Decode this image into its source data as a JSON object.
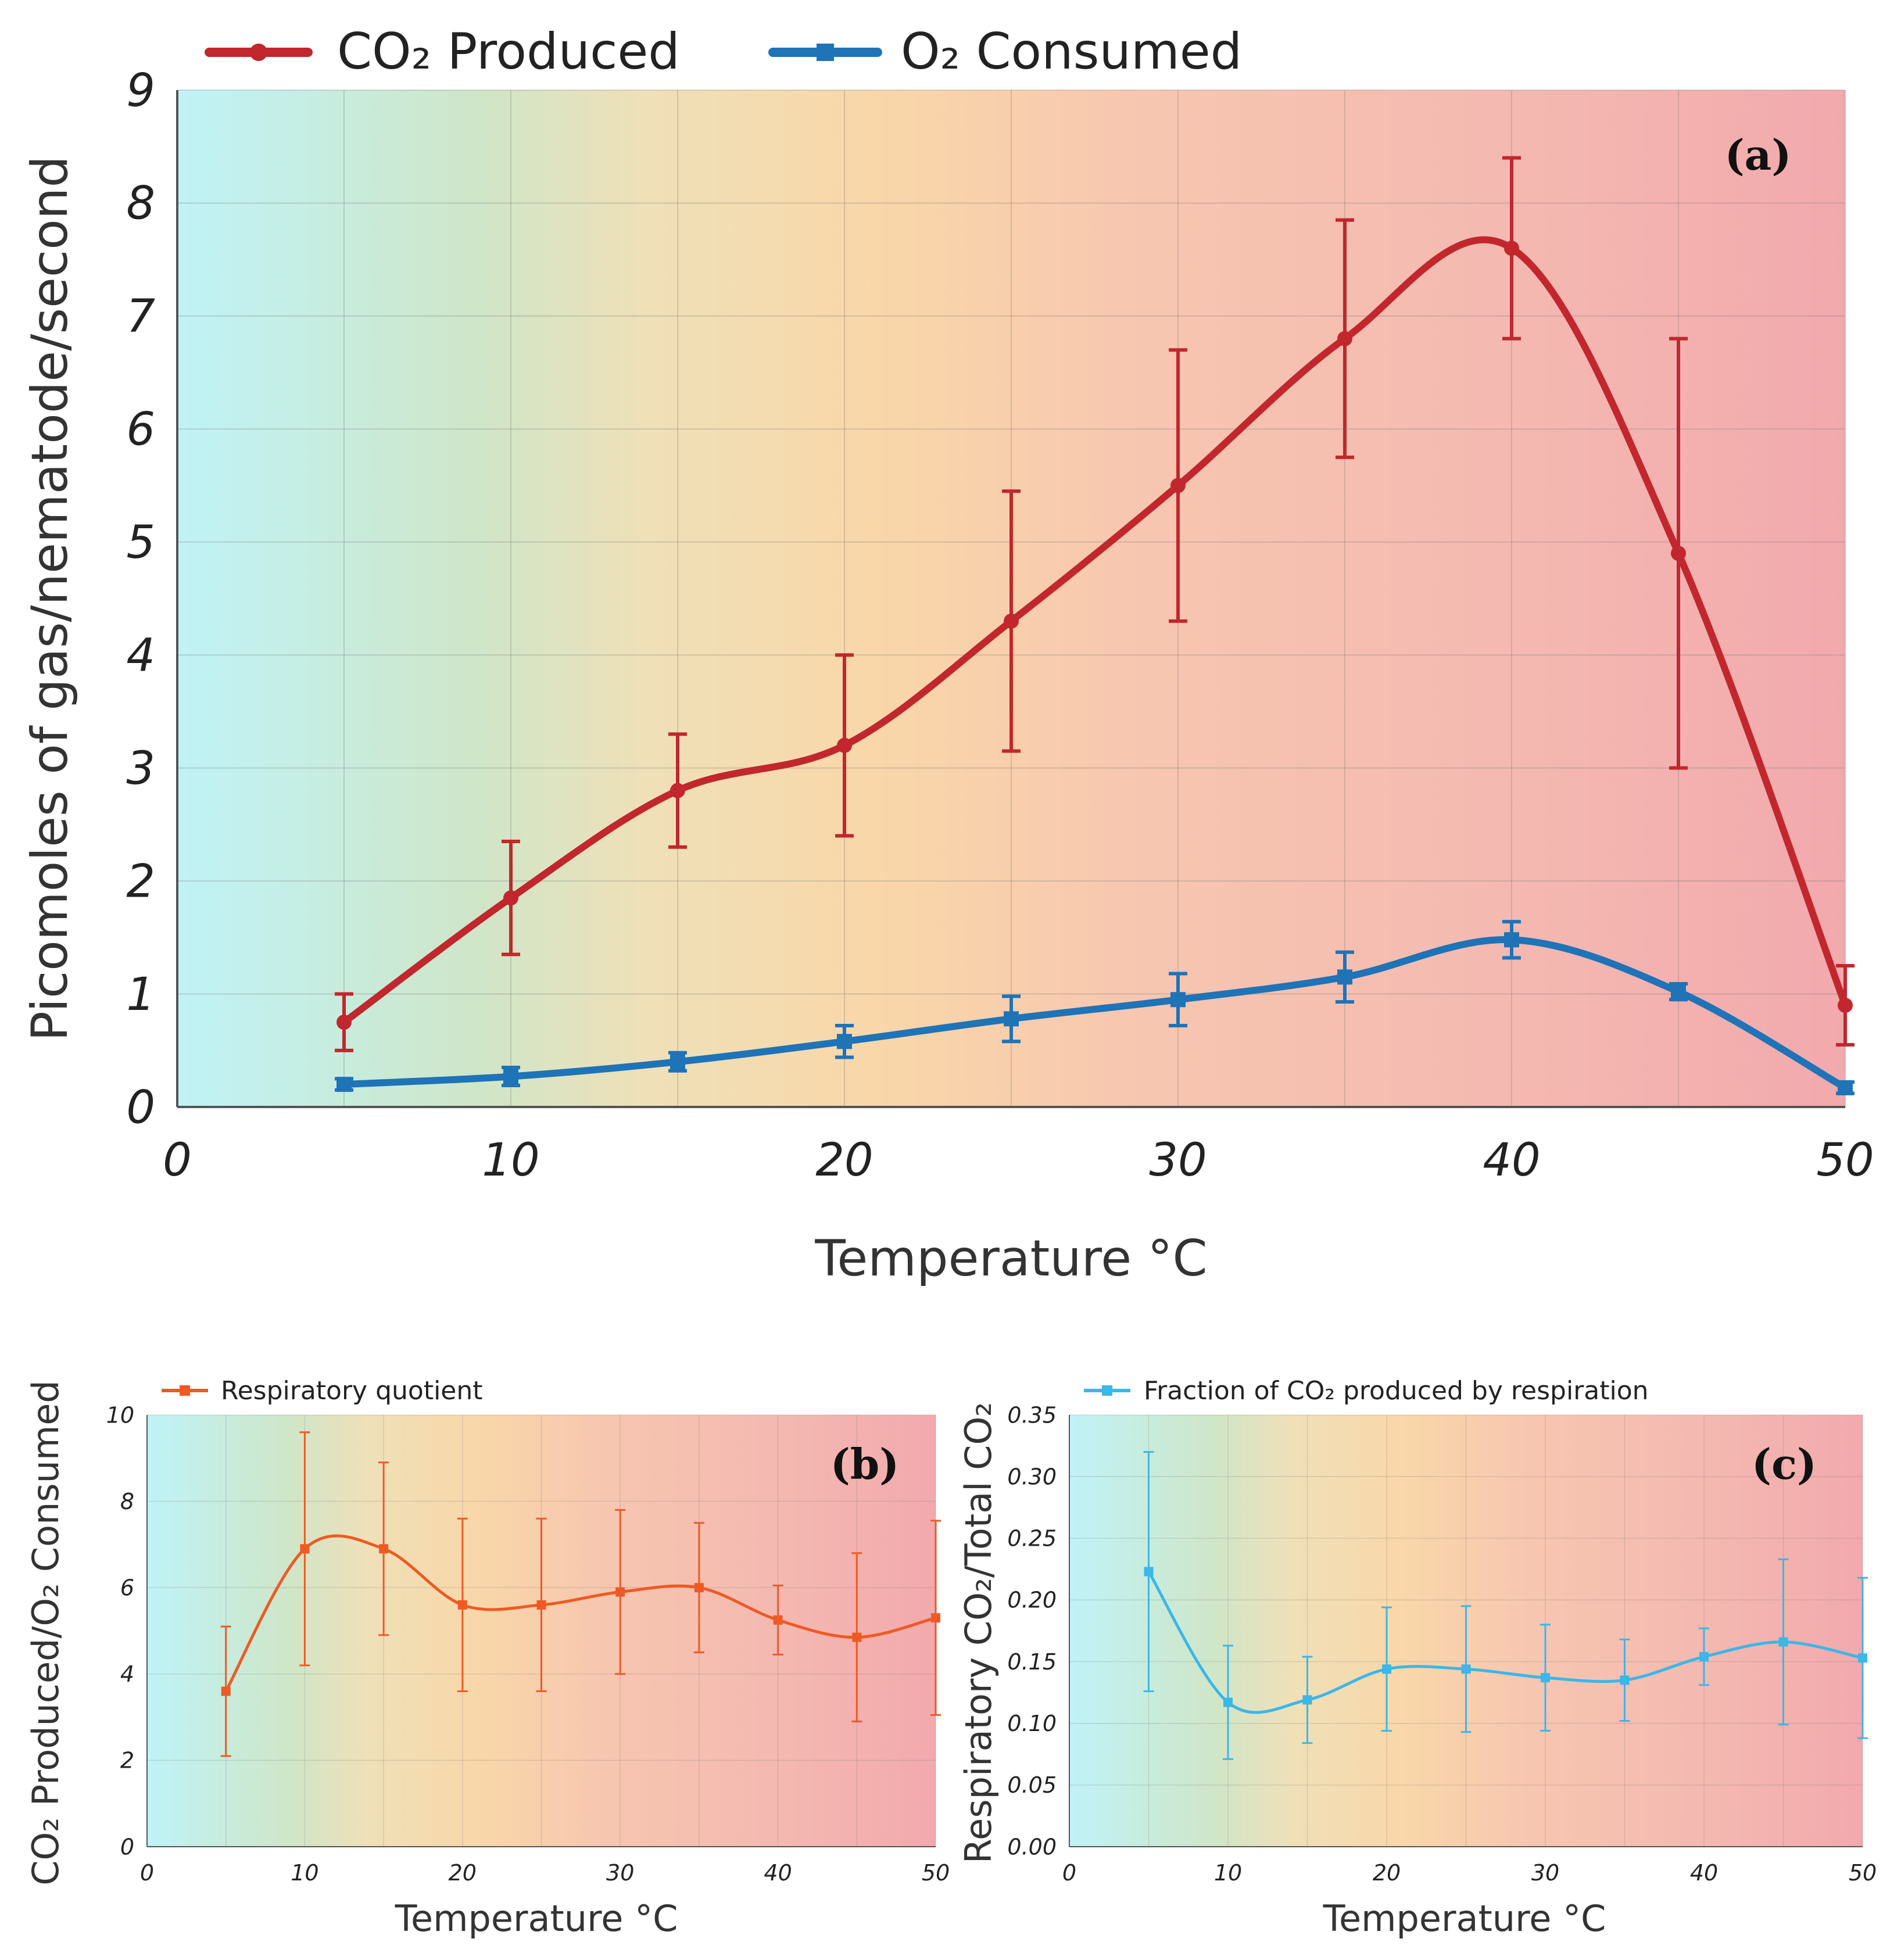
{
  "chart_data": [
    {
      "panel_label": "(a)",
      "type": "line",
      "xlabel": "Temperature °C",
      "ylabel": "Picomoles of gas/nematode/second",
      "xlim": [
        0,
        50
      ],
      "ylim": [
        0,
        9
      ],
      "xticks": [
        "0",
        "10",
        "20",
        "30",
        "40",
        "50"
      ],
      "yticks": [
        "0",
        "1",
        "2",
        "3",
        "4",
        "5",
        "6",
        "7",
        "8",
        "9"
      ],
      "grid": true,
      "legend_position": "top",
      "series": [
        {
          "name": "CO₂ Produced",
          "color": "#c1272d",
          "marker": "circle",
          "x": [
            5,
            10,
            15,
            20,
            25,
            30,
            35,
            40,
            45,
            50
          ],
          "y": [
            0.75,
            1.85,
            2.8,
            3.2,
            4.3,
            5.5,
            6.8,
            7.6,
            4.9,
            0.9
          ],
          "err": [
            0.25,
            0.5,
            0.5,
            0.8,
            1.15,
            1.2,
            1.05,
            0.8,
            1.9,
            0.35
          ]
        },
        {
          "name": "O₂ Consumed",
          "color": "#1f73b7",
          "marker": "square",
          "x": [
            5,
            10,
            15,
            20,
            25,
            30,
            35,
            40,
            45,
            50
          ],
          "y": [
            0.2,
            0.27,
            0.4,
            0.58,
            0.78,
            0.95,
            1.15,
            1.48,
            1.02,
            0.17
          ],
          "err": [
            0.05,
            0.08,
            0.08,
            0.14,
            0.2,
            0.23,
            0.22,
            0.16,
            0.07,
            0.05
          ]
        }
      ]
    },
    {
      "panel_label": "(b)",
      "type": "line",
      "xlabel": "Temperature °C",
      "ylabel": "CO₂ Produced/O₂ Consumed",
      "xlim": [
        0,
        50
      ],
      "ylim": [
        0,
        10
      ],
      "xticks": [
        "0",
        "10",
        "20",
        "30",
        "40",
        "50"
      ],
      "yticks": [
        "0",
        "2",
        "4",
        "6",
        "8",
        "10"
      ],
      "grid": true,
      "legend_position": "top-left",
      "series": [
        {
          "name": "Respiratory quotient",
          "color": "#ee5a24",
          "marker": "square",
          "x": [
            5,
            10,
            15,
            20,
            25,
            30,
            35,
            40,
            45,
            50
          ],
          "y": [
            3.6,
            6.9,
            6.9,
            5.6,
            5.6,
            5.9,
            6.0,
            5.25,
            4.85,
            5.3
          ],
          "err": [
            1.5,
            2.7,
            2.0,
            2.0,
            2.0,
            1.9,
            1.5,
            0.8,
            1.95,
            2.25
          ]
        }
      ]
    },
    {
      "panel_label": "(c)",
      "type": "line",
      "xlabel": "Temperature °C",
      "ylabel": "Respiratory CO₂/Total CO₂",
      "xlim": [
        0,
        50
      ],
      "ylim": [
        0,
        0.35
      ],
      "xticks": [
        "0",
        "10",
        "20",
        "30",
        "40",
        "50"
      ],
      "yticks": [
        "0.00",
        "0.05",
        "0.10",
        "0.15",
        "0.20",
        "0.25",
        "0.30",
        "0.35"
      ],
      "grid": true,
      "legend_position": "top-left",
      "series": [
        {
          "name": "Fraction of CO₂ produced by respiration",
          "color": "#3bb7e8",
          "marker": "square",
          "x": [
            5,
            10,
            15,
            20,
            25,
            30,
            35,
            40,
            45,
            50
          ],
          "y": [
            0.223,
            0.117,
            0.119,
            0.144,
            0.144,
            0.137,
            0.135,
            0.154,
            0.166,
            0.153
          ],
          "err": [
            0.097,
            0.046,
            0.035,
            0.05,
            0.051,
            0.043,
            0.033,
            0.023,
            0.067,
            0.065
          ]
        }
      ]
    }
  ]
}
